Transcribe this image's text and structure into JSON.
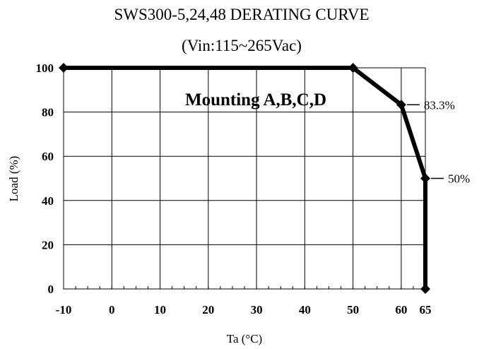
{
  "chart_data": {
    "type": "line",
    "title": "SWS300-5,24,48 DERATING CURVE",
    "subtitle": "(Vin:115~265Vac)",
    "xlabel": "Ta (°C)",
    "ylabel": "Load (%)",
    "xlim": [
      -10,
      65
    ],
    "ylim": [
      0,
      100
    ],
    "x_ticks": [
      -10,
      0,
      10,
      20,
      30,
      40,
      50,
      60,
      65
    ],
    "x_tick_labels": [
      "-10",
      "0",
      "10",
      "20",
      "30",
      "40",
      "50",
      "60",
      "65"
    ],
    "y_ticks": [
      0,
      20,
      40,
      60,
      80,
      100
    ],
    "y_tick_labels": [
      "0",
      "20",
      "40",
      "60",
      "80",
      "100"
    ],
    "grid": true,
    "annotation": "Mounting A,B,C,D",
    "series": [
      {
        "x": [
          -10,
          50,
          60,
          65,
          65
        ],
        "y": [
          100,
          100,
          83.3,
          50,
          0
        ]
      }
    ],
    "callouts": [
      {
        "text": "83.3%",
        "x": 60,
        "y": 83.3
      },
      {
        "text": "50%",
        "x": 65,
        "y": 50
      }
    ],
    "colors": {
      "line": "#000000",
      "grid": "#000000",
      "background": "#ffffff"
    }
  }
}
